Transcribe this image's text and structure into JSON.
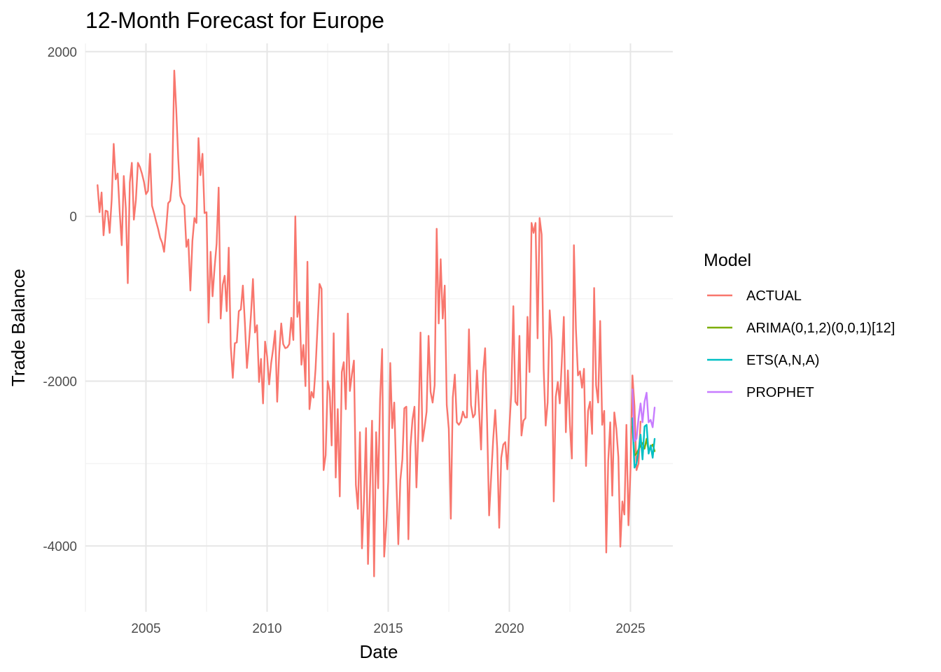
{
  "chart_data": {
    "type": "line",
    "title": "12-Month Forecast for Europe",
    "xlabel": "Date",
    "ylabel": "Trade Balance",
    "xlim": [
      2002.5,
      2026.75
    ],
    "ylim": [
      -4800,
      2100
    ],
    "x_ticks": [
      2005,
      2010,
      2015,
      2020,
      2025
    ],
    "x_tick_labels": [
      "2005",
      "2010",
      "2015",
      "2020",
      "2025"
    ],
    "y_ticks": [
      2000,
      0,
      -2000,
      -4000
    ],
    "y_tick_labels": [
      "2000",
      "0",
      "-2000",
      "-4000"
    ],
    "grid": true,
    "legend": {
      "title": "Model",
      "position": "right"
    },
    "series": [
      {
        "name": "ACTUAL",
        "color": "#F8766D",
        "x_start": 2003.0,
        "x_step": 0.0833333,
        "values": [
          380,
          50,
          290,
          -230,
          70,
          60,
          -200,
          200,
          880,
          450,
          520,
          50,
          -350,
          490,
          100,
          -810,
          410,
          650,
          -40,
          200,
          650,
          600,
          520,
          420,
          270,
          310,
          760,
          130,
          40,
          -60,
          -150,
          -260,
          -320,
          -430,
          -150,
          160,
          190,
          450,
          1770,
          1300,
          700,
          250,
          170,
          130,
          -370,
          -280,
          -900,
          -300,
          -20,
          -80,
          950,
          500,
          760,
          40,
          50,
          -1290,
          -430,
          -970,
          -620,
          -330,
          350,
          -1240,
          -830,
          -720,
          -1150,
          -380,
          -1580,
          -1960,
          -1540,
          -1530,
          -1150,
          -1130,
          -840,
          -1300,
          -1840,
          -1550,
          -1200,
          -760,
          -1410,
          -1320,
          -2010,
          -1730,
          -2270,
          -1520,
          -1700,
          -2040,
          -1780,
          -1610,
          -1390,
          -2250,
          -1660,
          -1300,
          -1550,
          -1600,
          -1590,
          -1550,
          -1230,
          -1500,
          0,
          -1220,
          -1040,
          -1800,
          -1560,
          -2060,
          -550,
          -2340,
          -2130,
          -2200,
          -1850,
          -1320,
          -820,
          -880,
          -3080,
          -2900,
          -2000,
          -2120,
          -2780,
          -1420,
          -3170,
          -2340,
          -3400,
          -1890,
          -1770,
          -2340,
          -1180,
          -2120,
          -1920,
          -1750,
          -3260,
          -3550,
          -2620,
          -4030,
          -3430,
          -2570,
          -4220,
          -3300,
          -2480,
          -4370,
          -2620,
          -3300,
          -2210,
          -1610,
          -4130,
          -3760,
          -3220,
          -1780,
          -2570,
          -2260,
          -3170,
          -3980,
          -3200,
          -2950,
          -2330,
          -2310,
          -3920,
          -2800,
          -2470,
          -2310,
          -3290,
          -2580,
          -1410,
          -2730,
          -2560,
          -2370,
          -1450,
          -2130,
          -2260,
          -2050,
          -150,
          -1300,
          -520,
          -1240,
          -840,
          -2290,
          -2580,
          -3670,
          -2200,
          -1920,
          -2500,
          -2530,
          -2490,
          -2370,
          -2440,
          -2440,
          -1370,
          -2290,
          -2440,
          -2400,
          -1870,
          -2350,
          -2830,
          -1910,
          -1600,
          -2500,
          -3630,
          -3160,
          -2710,
          -2350,
          -2820,
          -3780,
          -2930,
          -2770,
          -2740,
          -3070,
          -2560,
          -2140,
          -1090,
          -2250,
          -2290,
          -1450,
          -2660,
          -2480,
          -2450,
          -1220,
          -1890,
          -80,
          -200,
          -80,
          -1480,
          -20,
          -220,
          -1850,
          -2540,
          -2260,
          -1140,
          -1500,
          -3460,
          -2190,
          -2010,
          -2270,
          -1770,
          -1220,
          -2620,
          -1870,
          -2530,
          -2940,
          -350,
          -1370,
          -1930,
          -1880,
          -2080,
          -1850,
          -3030,
          -2360,
          -2250,
          -2640,
          -870,
          -2050,
          -2260,
          -1270,
          -2530,
          -2360,
          -4080,
          -2970,
          -2500,
          -3390,
          -2380,
          -2580,
          -2920,
          -4010,
          -3460,
          -3620,
          -2530,
          -3750,
          -3080,
          -1930,
          -2300,
          -3080,
          -3000,
          -2490
        ]
      },
      {
        "name": "ARIMA(0,1,2)(0,0,1)[12]",
        "color": "#7CAE00",
        "x_start": 2025.083,
        "x_step": 0.0833333,
        "values": [
          -2550,
          -2900,
          -2880,
          -2830,
          -2780,
          -2750,
          -2820,
          -2700,
          -2850,
          -2800,
          -2770,
          -2850
        ]
      },
      {
        "name": "ETS(A,N,A)",
        "color": "#00BFC4",
        "x_start": 2025.083,
        "x_step": 0.0833333,
        "values": [
          -2450,
          -3050,
          -3000,
          -2850,
          -2650,
          -2950,
          -2550,
          -2530,
          -2880,
          -2780,
          -2930,
          -2700
        ]
      },
      {
        "name": "PROPHET",
        "color": "#C77CFF",
        "x_start": 2025.083,
        "x_step": 0.0833333,
        "values": [
          -2100,
          -2730,
          -2700,
          -2450,
          -2270,
          -2500,
          -2250,
          -2140,
          -2500,
          -2470,
          -2560,
          -2320
        ]
      }
    ]
  }
}
